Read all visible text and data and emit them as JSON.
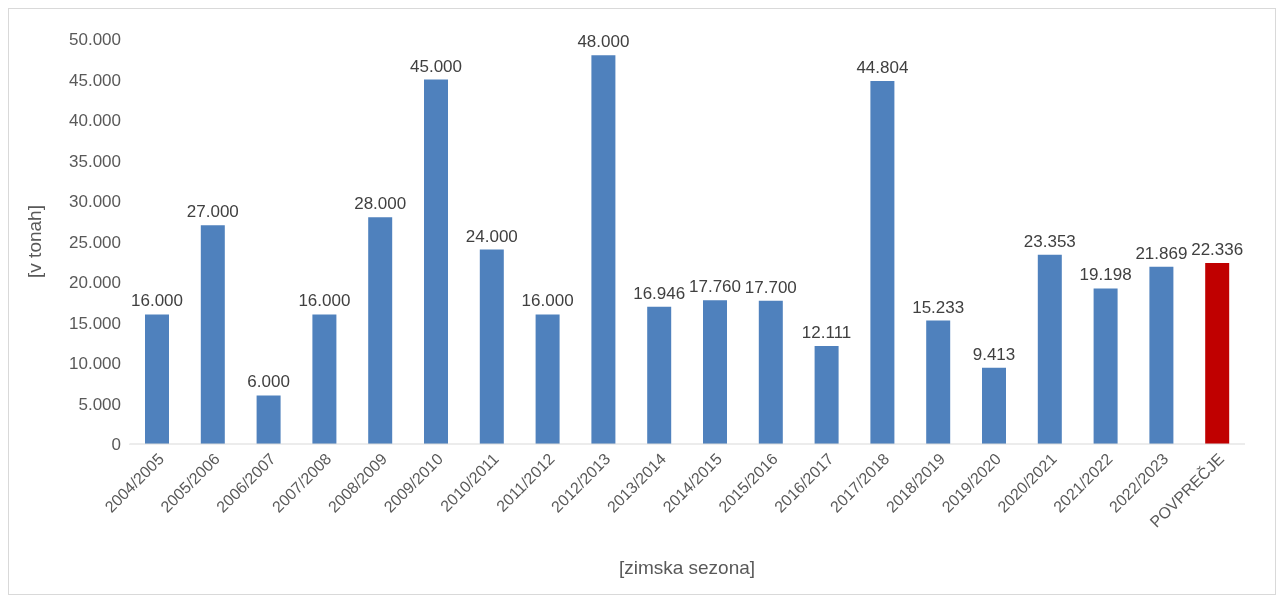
{
  "chart_data": {
    "type": "bar",
    "xlabel": "[zimska sezona]",
    "ylabel": "[v tonah]",
    "categories": [
      "2004/2005",
      "2005/2006",
      "2006/2007",
      "2007/2008",
      "2008/2009",
      "2009/2010",
      "2010/2011",
      "2011/2012",
      "2012/2013",
      "2013/2014",
      "2014/2015",
      "2015/2016",
      "2016/2017",
      "2017/2018",
      "2018/2019",
      "2019/2020",
      "2020/2021",
      "2021/2022",
      "2022/2023",
      "POVPREČJE"
    ],
    "values": [
      16000,
      27000,
      6000,
      16000,
      28000,
      45000,
      24000,
      16000,
      48000,
      16946,
      17760,
      17700,
      12111,
      44804,
      15233,
      9413,
      23353,
      19198,
      21869,
      22336
    ],
    "value_labels": [
      "16.000",
      "27.000",
      "6.000",
      "16.000",
      "28.000",
      "45.000",
      "24.000",
      "16.000",
      "48.000",
      "16.946",
      "17.760",
      "17.700",
      "12.111",
      "44.804",
      "15.233",
      "9.413",
      "23.353",
      "19.198",
      "21.869",
      "22.336"
    ],
    "colors": [
      "#4f81bd",
      "#4f81bd",
      "#4f81bd",
      "#4f81bd",
      "#4f81bd",
      "#4f81bd",
      "#4f81bd",
      "#4f81bd",
      "#4f81bd",
      "#4f81bd",
      "#4f81bd",
      "#4f81bd",
      "#4f81bd",
      "#4f81bd",
      "#4f81bd",
      "#4f81bd",
      "#4f81bd",
      "#4f81bd",
      "#4f81bd",
      "#c00000"
    ],
    "ylim": [
      0,
      50000
    ],
    "yticks": [
      {
        "value": 0,
        "label": "0"
      },
      {
        "value": 5000,
        "label": "5.000"
      },
      {
        "value": 10000,
        "label": "10.000"
      },
      {
        "value": 15000,
        "label": "15.000"
      },
      {
        "value": 20000,
        "label": "20.000"
      },
      {
        "value": 25000,
        "label": "25.000"
      },
      {
        "value": 30000,
        "label": "30.000"
      },
      {
        "value": 35000,
        "label": "35.000"
      },
      {
        "value": 40000,
        "label": "40.000"
      },
      {
        "value": 45000,
        "label": "45.000"
      },
      {
        "value": 50000,
        "label": "50.000"
      }
    ],
    "grid": false,
    "legend": false
  }
}
